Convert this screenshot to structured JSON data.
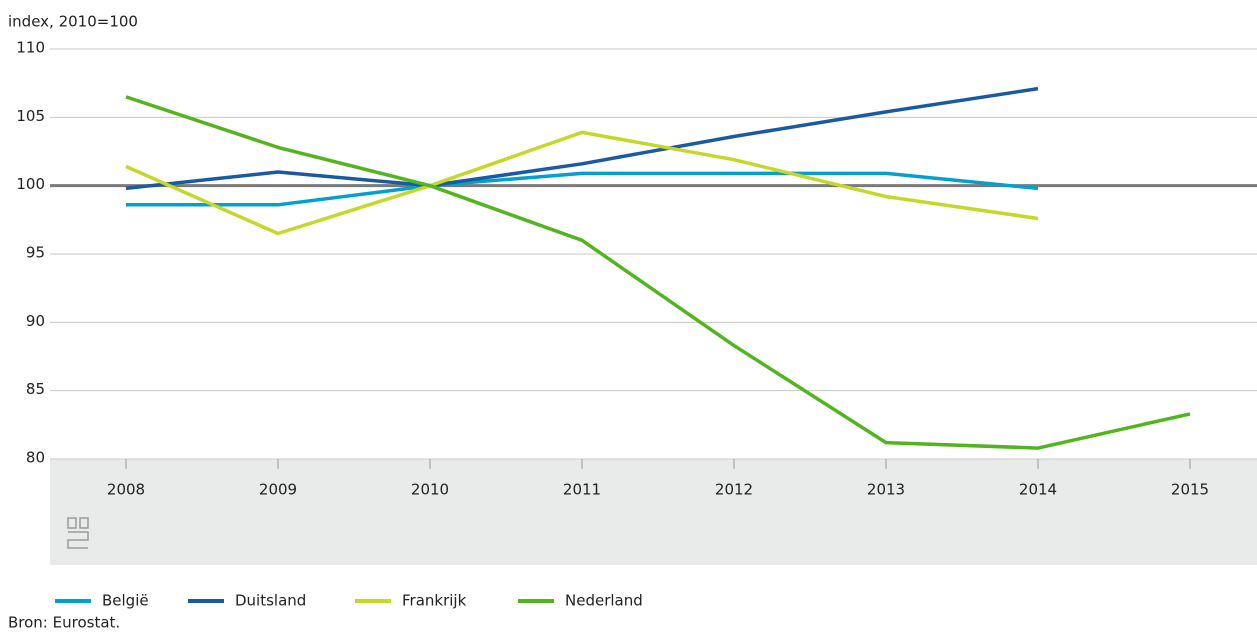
{
  "chart_data": {
    "type": "line",
    "y_label": "index, 2010=100",
    "categories": [
      "2008",
      "2009",
      "2010",
      "2011",
      "2012",
      "2013",
      "2014",
      "2015"
    ],
    "series": [
      {
        "name": "België",
        "color": "#00a1cd",
        "values": [
          98.6,
          98.6,
          100,
          100.9,
          100.9,
          100.9,
          99.8,
          null
        ]
      },
      {
        "name": "Duitsland",
        "color": "#1a5aa3",
        "values": [
          99.8,
          101.0,
          100,
          101.6,
          103.6,
          105.4,
          107.1,
          null
        ]
      },
      {
        "name": "Frankrijk",
        "color": "#c5d828",
        "values": [
          101.4,
          96.5,
          100,
          103.9,
          101.9,
          99.2,
          97.6,
          null
        ]
      },
      {
        "name": "Nederland",
        "color": "#53b51e",
        "values": [
          106.5,
          102.8,
          100,
          96.0,
          88.3,
          81.2,
          80.8,
          83.3
        ]
      }
    ],
    "ylim": [
      80,
      110
    ],
    "yticks": [
      80,
      85,
      90,
      95,
      100,
      105,
      110
    ],
    "baseline": 100,
    "grid": true,
    "source": "Bron: Eurostat."
  }
}
